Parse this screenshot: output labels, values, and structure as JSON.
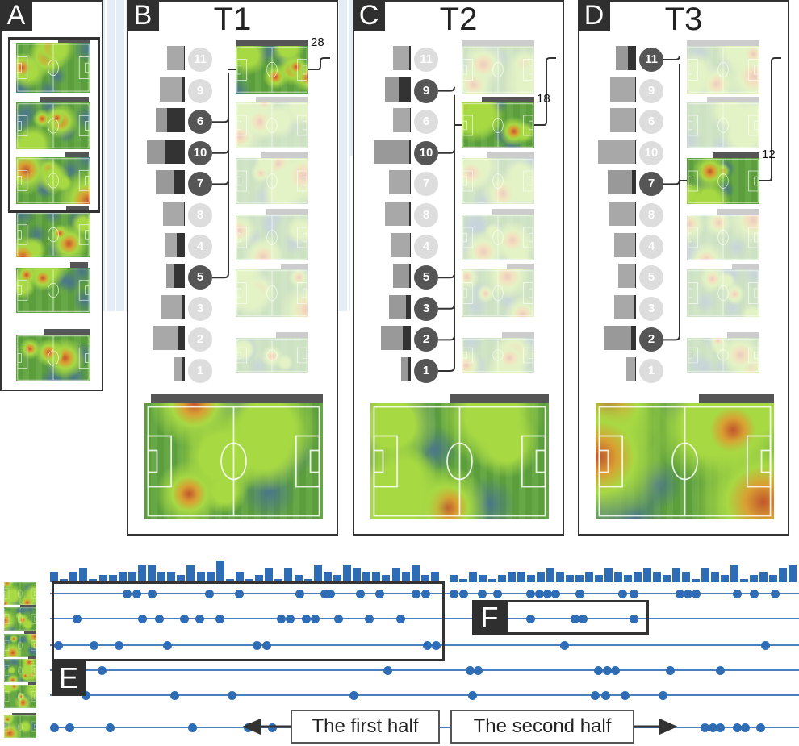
{
  "panel_a": {
    "letter": "A",
    "clusters": 6
  },
  "panels": [
    {
      "letter": "B",
      "title": "T1",
      "highlight": 0,
      "count": "28",
      "players": [
        {
          "num": "11",
          "on": false,
          "total": 0.45,
          "dark": 0.02
        },
        {
          "num": "9",
          "on": false,
          "total": 0.62,
          "dark": 0.06
        },
        {
          "num": "6",
          "on": true,
          "total": 0.72,
          "dark": 0.45
        },
        {
          "num": "10",
          "on": true,
          "total": 0.95,
          "dark": 0.5
        },
        {
          "num": "7",
          "on": true,
          "total": 0.72,
          "dark": 0.28
        },
        {
          "num": "8",
          "on": false,
          "total": 0.55,
          "dark": 0.02
        },
        {
          "num": "4",
          "on": false,
          "total": 0.5,
          "dark": 0.2
        },
        {
          "num": "5",
          "on": true,
          "total": 0.47,
          "dark": 0.28
        },
        {
          "num": "3",
          "on": false,
          "total": 0.58,
          "dark": 0.08
        },
        {
          "num": "2",
          "on": false,
          "total": 0.78,
          "dark": 0.16
        },
        {
          "num": "1",
          "on": false,
          "total": 0.27,
          "dark": 0.06
        }
      ]
    },
    {
      "letter": "C",
      "title": "T2",
      "highlight": 1,
      "count": "18",
      "players": [
        {
          "num": "11",
          "on": false,
          "total": 0.45,
          "dark": 0.05
        },
        {
          "num": "9",
          "on": true,
          "total": 0.65,
          "dark": 0.3
        },
        {
          "num": "6",
          "on": false,
          "total": 0.45,
          "dark": 0.02
        },
        {
          "num": "10",
          "on": true,
          "total": 0.92,
          "dark": 0.05
        },
        {
          "num": "7",
          "on": false,
          "total": 0.55,
          "dark": 0.02
        },
        {
          "num": "8",
          "on": false,
          "total": 0.65,
          "dark": 0.04
        },
        {
          "num": "4",
          "on": false,
          "total": 0.5,
          "dark": 0.02
        },
        {
          "num": "5",
          "on": true,
          "total": 0.45,
          "dark": 0.05
        },
        {
          "num": "3",
          "on": true,
          "total": 0.55,
          "dark": 0.12
        },
        {
          "num": "2",
          "on": true,
          "total": 0.75,
          "dark": 0.2
        },
        {
          "num": "1",
          "on": true,
          "total": 0.25,
          "dark": 0.08
        }
      ]
    },
    {
      "letter": "D",
      "title": "T3",
      "highlight": 2,
      "count": "12",
      "players": [
        {
          "num": "11",
          "on": true,
          "total": 0.5,
          "dark": 0.2
        },
        {
          "num": "9",
          "on": false,
          "total": 0.65,
          "dark": 0.02
        },
        {
          "num": "6",
          "on": false,
          "total": 0.65,
          "dark": 0.02
        },
        {
          "num": "10",
          "on": false,
          "total": 0.95,
          "dark": 0.02
        },
        {
          "num": "7",
          "on": true,
          "total": 0.7,
          "dark": 0.1
        },
        {
          "num": "8",
          "on": false,
          "total": 0.68,
          "dark": 0.02
        },
        {
          "num": "4",
          "on": false,
          "total": 0.55,
          "dark": 0.02
        },
        {
          "num": "5",
          "on": false,
          "total": 0.45,
          "dark": 0.02
        },
        {
          "num": "3",
          "on": false,
          "total": 0.55,
          "dark": 0.05
        },
        {
          "num": "2",
          "on": true,
          "total": 0.8,
          "dark": 0.12
        },
        {
          "num": "1",
          "on": false,
          "total": 0.25,
          "dark": 0.02
        }
      ]
    }
  ],
  "timeline": {
    "label_e": "E",
    "label_f": "F",
    "first_half_label": "The first half",
    "second_half_label": "The second half",
    "sort_icon": "sort-icon",
    "first_half_counts": [
      3,
      1,
      3,
      4,
      1,
      2,
      2,
      3,
      3,
      5,
      5,
      3,
      3,
      2,
      5,
      3,
      3,
      6,
      1,
      3,
      1,
      2,
      4,
      1,
      4,
      2,
      1,
      5,
      3,
      2,
      5,
      4,
      3,
      3,
      2,
      4,
      3,
      5,
      2,
      3
    ],
    "second_half_counts": [
      2,
      1,
      3,
      2,
      1,
      2,
      3,
      3,
      2,
      3,
      4,
      3,
      2,
      2,
      3,
      2,
      4,
      3,
      2,
      3,
      4,
      3,
      2,
      4,
      3,
      1,
      4,
      3,
      2,
      5,
      1,
      2,
      3,
      2,
      4,
      5
    ],
    "rows": [
      [
        9.3,
        10.5,
        12.3,
        19.3,
        22.9,
        30.2,
        33.2,
        33.9,
        37.5,
        39.8,
        44.2,
        45.4,
        48.8,
        50,
        52.2,
        54.1,
        58.1,
        59.1,
        60.1,
        61.1,
        64,
        69.2,
        70.5,
        76.1,
        77.1,
        78.1,
        83,
        85.1,
        87.6
      ],
      [
        3.3,
        11.2,
        13.2,
        16.2,
        18.1,
        20.5,
        27.9,
        29,
        31,
        32,
        34.9,
        38.6,
        42.4,
        58.1,
        63.4,
        64.4,
        70.5
      ],
      [
        1,
        5.3,
        8.3,
        14.2,
        25,
        26.2,
        45.6,
        46.7,
        62.2,
        86.4
      ],
      [
        6.3,
        40.8,
        50.8,
        51.7,
        66.3,
        67.3,
        68.3,
        74.9,
        81
      ],
      [
        4.3,
        15.1,
        22,
        36.7,
        51,
        65.9,
        67.1,
        69.5,
        74.1
      ],
      [
        0.5,
        2.4,
        7.3,
        17.2,
        23.9,
        26.9,
        79.1,
        80.1,
        81,
        83,
        84,
        85.9
      ]
    ]
  }
}
